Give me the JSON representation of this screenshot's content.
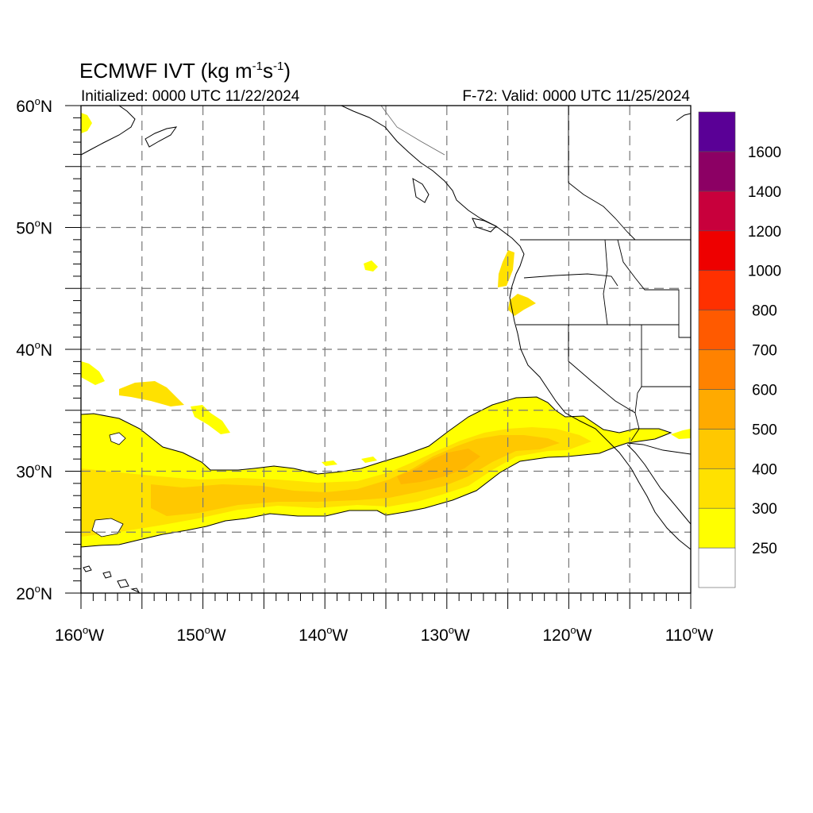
{
  "title": {
    "main": "ECMWF IVT (kg m",
    "sup1": "-1",
    "mid": "s",
    "sup2": "-1",
    "close": ")"
  },
  "init_label": "Initialized: 0000 UTC 11/22/2024",
  "valid_label": "F-72: Valid: 0000 UTC 11/25/2024",
  "lat_ticks": [
    {
      "value": 60,
      "label": "60",
      "suffix": "N"
    },
    {
      "value": 50,
      "label": "50",
      "suffix": "N"
    },
    {
      "value": 40,
      "label": "40",
      "suffix": "N"
    },
    {
      "value": 30,
      "label": "30",
      "suffix": "N"
    },
    {
      "value": 20,
      "label": "20",
      "suffix": "N"
    }
  ],
  "lon_ticks": [
    {
      "value": -160,
      "label": "160",
      "suffix": "W"
    },
    {
      "value": -150,
      "label": "150",
      "suffix": "W"
    },
    {
      "value": -140,
      "label": "140",
      "suffix": "W"
    },
    {
      "value": -130,
      "label": "130",
      "suffix": "W"
    },
    {
      "value": -120,
      "label": "120",
      "suffix": "W"
    },
    {
      "value": -110,
      "label": "110",
      "suffix": "W"
    }
  ],
  "map_extent": {
    "lon_min": -160,
    "lon_max": -110,
    "lat_min": 20,
    "lat_max": 60
  },
  "gridlines": {
    "lon_step": 5,
    "lat_step": 5
  },
  "colorbar": {
    "levels": [
      "250",
      "300",
      "400",
      "500",
      "600",
      "700",
      "800",
      "1000",
      "1200",
      "1400",
      "1600"
    ],
    "colors": [
      "#ffffff",
      "#ffff00",
      "#ffe100",
      "#ffc800",
      "#ffaa00",
      "#ff8200",
      "#ff5a00",
      "#ff3000",
      "#ee0000",
      "#c8003c",
      "#8c0064",
      "#5a0096"
    ]
  }
}
